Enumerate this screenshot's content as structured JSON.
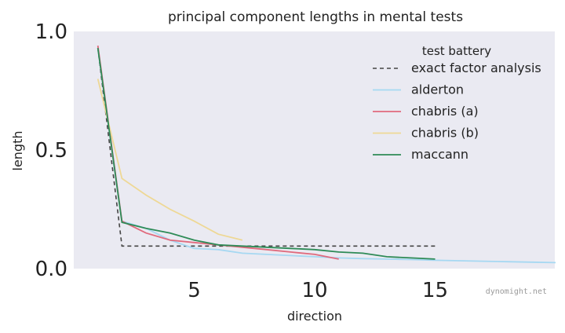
{
  "chart_data": {
    "type": "line",
    "title": "principal component lengths in mental tests",
    "xlabel": "direction",
    "ylabel": "length",
    "xlim": [
      0,
      20
    ],
    "ylim": [
      0,
      1.0
    ],
    "xticks": [
      5,
      10,
      15
    ],
    "yticks": [
      0.0,
      0.5,
      1.0
    ],
    "grid": false,
    "background": "#eaeaf2",
    "legend": {
      "title": "test battery",
      "placement": "top-right"
    },
    "series": [
      {
        "name": "exact factor analysis",
        "color": "#444444",
        "dashed": true,
        "x": [
          1,
          2,
          3,
          4,
          5,
          6,
          7,
          8,
          9,
          10,
          11,
          12,
          13,
          14,
          15
        ],
        "y": [
          0.93,
          0.095,
          0.095,
          0.095,
          0.095,
          0.095,
          0.095,
          0.095,
          0.095,
          0.095,
          0.095,
          0.095,
          0.095,
          0.095,
          0.095
        ]
      },
      {
        "name": "alderton",
        "color": "#a6d8f2",
        "dashed": false,
        "x": [
          1,
          2,
          3,
          4,
          5,
          6,
          7,
          8,
          9,
          10,
          11,
          12,
          13,
          14,
          15,
          16,
          17,
          18,
          19,
          20
        ],
        "y": [
          0.93,
          0.2,
          0.17,
          0.12,
          0.085,
          0.08,
          0.065,
          0.06,
          0.055,
          0.05,
          0.045,
          0.042,
          0.04,
          0.038,
          0.035,
          0.033,
          0.031,
          0.029,
          0.027,
          0.025
        ]
      },
      {
        "name": "chabris (a)",
        "color": "#e06a7d",
        "dashed": false,
        "x": [
          1,
          2,
          3,
          4,
          5,
          6,
          7,
          8,
          9,
          10,
          11
        ],
        "y": [
          0.94,
          0.2,
          0.15,
          0.12,
          0.11,
          0.1,
          0.09,
          0.08,
          0.07,
          0.06,
          0.04
        ]
      },
      {
        "name": "chabris (b)",
        "color": "#eed895",
        "dashed": false,
        "x": [
          1,
          2,
          3,
          4,
          5,
          6,
          7
        ],
        "y": [
          0.8,
          0.38,
          0.31,
          0.25,
          0.2,
          0.145,
          0.12
        ]
      },
      {
        "name": "maccann",
        "color": "#2e8b57",
        "dashed": false,
        "x": [
          1,
          2,
          3,
          4,
          5,
          6,
          7,
          8,
          9,
          10,
          11,
          12,
          13,
          14,
          15
        ],
        "y": [
          0.93,
          0.195,
          0.17,
          0.15,
          0.12,
          0.1,
          0.095,
          0.09,
          0.085,
          0.08,
          0.07,
          0.065,
          0.05,
          0.045,
          0.04
        ]
      }
    ]
  },
  "watermark": "dynomight.net"
}
